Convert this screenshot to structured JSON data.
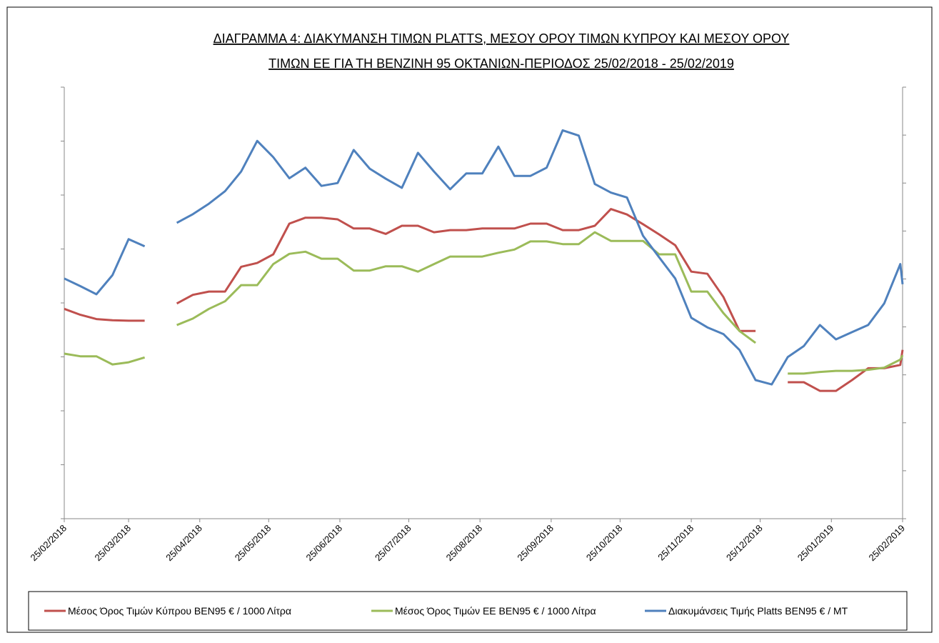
{
  "chart_data": {
    "type": "line",
    "title": [
      "ΔΙΑΓΡΑΜΜΑ 4: ΔΙΑΚΥΜΑΝΣΗ ΤΙΜΩΝ PLATTS, ΜΕΣΟΥ ΟΡΟΥ ΤΙΜΩΝ ΚΥΠΡΟΥ ΚΑΙ ΜΕΣΟΥ ΟΡΟΥ",
      "ΤΙΜΩΝ ΕΕ ΓΙΑ ΤΗ ΒΕΝΖΙΝΗ 95 ΟΚΤΑΝΙΩΝ-ΠΕΡΙΟΔΟΣ 25/02/2018 - 25/02/2019"
    ],
    "x": [
      "25/02/2018",
      "04/03/2018",
      "11/03/2018",
      "18/03/2018",
      "25/03/2018",
      "01/04/2018",
      "08/04/2018",
      "15/04/2018",
      "22/04/2018",
      "29/04/2018",
      "06/05/2018",
      "13/05/2018",
      "20/05/2018",
      "27/05/2018",
      "03/06/2018",
      "10/06/2018",
      "17/06/2018",
      "24/06/2018",
      "01/07/2018",
      "08/07/2018",
      "15/07/2018",
      "22/07/2018",
      "29/07/2018",
      "05/08/2018",
      "12/08/2018",
      "19/08/2018",
      "26/08/2018",
      "02/09/2018",
      "09/09/2018",
      "16/09/2018",
      "23/09/2018",
      "30/09/2018",
      "07/10/2018",
      "14/10/2018",
      "21/10/2018",
      "28/10/2018",
      "04/11/2018",
      "11/11/2018",
      "18/11/2018",
      "25/11/2018",
      "02/12/2018",
      "09/12/2018",
      "16/12/2018",
      "23/12/2018",
      "30/12/2018",
      "06/01/2019",
      "13/01/2019",
      "20/01/2019",
      "27/01/2019",
      "03/02/2019",
      "10/02/2019",
      "17/02/2019",
      "24/02/2019",
      "25/02/2019"
    ],
    "xlim": [
      "25/02/2018",
      "25/02/2019"
    ],
    "xticks": [
      "25/02/2018",
      "25/03/2018",
      "25/04/2018",
      "25/05/2018",
      "25/06/2018",
      "25/07/2018",
      "25/08/2018",
      "25/09/2018",
      "25/10/2018",
      "25/11/2018",
      "25/12/2018",
      "25/01/2019",
      "25/02/2019"
    ],
    "ylim": [
      0,
      8
    ],
    "yticks": [
      0,
      1,
      2,
      3,
      4,
      5,
      6,
      7,
      8
    ],
    "y2lim": [
      0,
      9
    ],
    "y2ticks": [
      0,
      1,
      2,
      3,
      4,
      5,
      6,
      7,
      8,
      9
    ],
    "legend": "bottom",
    "series": [
      {
        "name": "Μέσος Όρος Τιμών Κύπρου ΒΕΝ95 € / 1000 Λίτρα",
        "color": "#c0504d",
        "values": [
          3.89,
          3.78,
          3.7,
          3.68,
          3.67,
          3.67,
          null,
          3.99,
          4.15,
          4.21,
          4.21,
          4.67,
          4.74,
          4.9,
          5.47,
          5.58,
          5.58,
          5.55,
          5.38,
          5.38,
          5.28,
          5.43,
          5.43,
          5.31,
          5.35,
          5.35,
          5.38,
          5.38,
          5.38,
          5.47,
          5.47,
          5.35,
          5.35,
          5.43,
          5.74,
          5.64,
          5.46,
          5.27,
          5.07,
          4.58,
          4.54,
          4.11,
          3.48,
          3.48,
          null,
          2.53,
          2.53,
          2.37,
          2.37,
          2.57,
          2.79,
          2.79,
          2.85,
          3.13
        ]
      },
      {
        "name": "Μέσος Όρος Τιμών ΕΕ ΒΕΝ95 € / 1000 Λίτρα",
        "color": "#9bbb59",
        "values": [
          3.06,
          3.01,
          3.01,
          2.86,
          2.9,
          2.99,
          null,
          3.59,
          3.71,
          3.89,
          4.03,
          4.33,
          4.33,
          4.72,
          4.91,
          4.95,
          4.82,
          4.82,
          4.6,
          4.6,
          4.68,
          4.68,
          4.58,
          4.72,
          4.86,
          4.86,
          4.86,
          4.93,
          4.99,
          5.14,
          5.14,
          5.09,
          5.09,
          5.31,
          5.15,
          5.15,
          5.15,
          4.9,
          4.9,
          4.21,
          4.21,
          3.81,
          3.48,
          3.26,
          null,
          2.69,
          2.69,
          2.72,
          2.74,
          2.74,
          2.76,
          2.8,
          2.95,
          3.03
        ]
      },
      {
        "name": "Διακυμάνσεις Τιμής Platts ΒΕΝ95 € / ΜΤ",
        "color": "#4f81bd",
        "axis": "y2",
        "values": [
          5.01,
          4.85,
          4.68,
          5.08,
          5.83,
          5.68,
          null,
          6.17,
          6.35,
          6.57,
          6.83,
          7.24,
          7.88,
          7.54,
          7.1,
          7.32,
          6.94,
          7.0,
          7.69,
          7.3,
          7.09,
          6.9,
          7.63,
          7.24,
          6.87,
          7.2,
          7.2,
          7.76,
          7.15,
          7.15,
          7.32,
          8.1,
          7.99,
          6.98,
          6.8,
          6.7,
          5.9,
          5.45,
          5.01,
          4.19,
          3.99,
          3.85,
          3.52,
          2.89,
          2.8,
          3.37,
          3.6,
          4.04,
          3.74,
          3.89,
          4.04,
          4.49,
          5.31,
          4.89
        ]
      }
    ]
  }
}
